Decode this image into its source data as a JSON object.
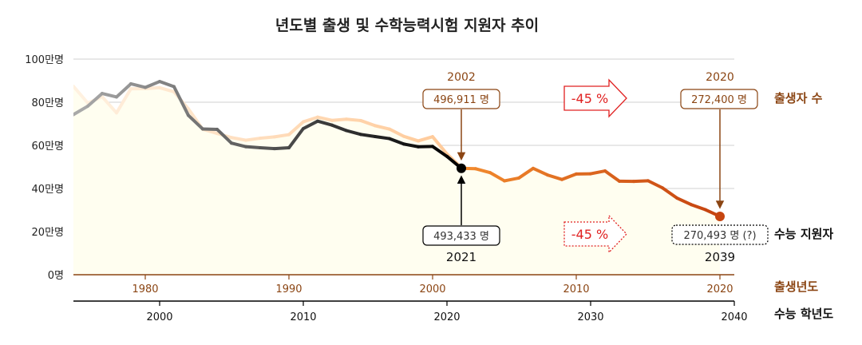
{
  "chart_data": {
    "type": "line",
    "title": "년도별 출생 및 수학능력시험 지원자 추이",
    "y_tick_labels": [
      "0명",
      "20만명",
      "40만명",
      "60만명",
      "80만명",
      "100만명"
    ],
    "ylim": [
      0,
      1000000
    ],
    "grid": true,
    "x_axis_birth": {
      "label": "출생년도",
      "ticks": [
        "1980",
        "1990",
        "2000",
        "2010",
        "2020"
      ],
      "range": [
        1975,
        2021
      ]
    },
    "x_axis_exam": {
      "label": "수능 학년도",
      "ticks": [
        "2000",
        "2010",
        "2020",
        "2030",
        "2040"
      ],
      "range": [
        1994,
        2040
      ]
    },
    "series": [
      {
        "name": "출생자 수",
        "axis": "birth",
        "x": [
          1975,
          1976,
          1977,
          1978,
          1979,
          1980,
          1981,
          1982,
          1983,
          1984,
          1985,
          1986,
          1987,
          1988,
          1989,
          1990,
          1991,
          1992,
          1993,
          1994,
          1995,
          1996,
          1997,
          1998,
          1999,
          2000,
          2001,
          2002,
          2003,
          2004,
          2005,
          2006,
          2007,
          2008,
          2009,
          2010,
          2011,
          2012,
          2013,
          2014,
          2015,
          2016,
          2017,
          2018,
          2019,
          2020
        ],
        "values": [
          874030,
          796331,
          825339,
          750728,
          862669,
          862835,
          867409,
          848312,
          769155,
          674793,
          655489,
          636019,
          623831,
          633092,
          639431,
          649738,
          709275,
          730678,
          715826,
          721185,
          715020,
          691226,
          675394,
          641594,
          620668,
          640089,
          559934,
          496911,
          495036,
          476958,
          438707,
          451759,
          496822,
          465892,
          444849,
          470171,
          471265,
          484550,
          436455,
          435435,
          438420,
          406243,
          357771,
          326822,
          302676,
          272400
        ]
      },
      {
        "name": "수능 지원자",
        "axis": "exam",
        "x": [
          1994,
          1995,
          1996,
          1997,
          1998,
          1999,
          2000,
          2001,
          2002,
          2003,
          2004,
          2005,
          2006,
          2007,
          2008,
          2009,
          2010,
          2011,
          2012,
          2013,
          2014,
          2015,
          2016,
          2017,
          2018,
          2019,
          2020,
          2021
        ],
        "values": [
          742668,
          781749,
          840661,
          824374,
          885321,
          868643,
          896122,
          872297,
          739129,
          675922,
          674154,
          610257,
          593806,
          588899,
          584934,
          588839,
          677834,
          712227,
          693631,
          668527,
          650747,
          640621,
          631187,
          605987,
          593527,
          594924,
          548734,
          493433
        ]
      },
      {
        "name": "수능 지원자 (예상)",
        "axis": "exam",
        "x": [
          2021,
          2022,
          2023,
          2024,
          2025,
          2026,
          2027,
          2028,
          2029,
          2030,
          2031,
          2032,
          2033,
          2034,
          2035,
          2036,
          2037,
          2038,
          2039
        ],
        "values": [
          493433,
          491530,
          473510,
          435370,
          448380,
          493270,
          462560,
          441860,
          467180,
          468250,
          481280,
          433810,
          432700,
          435620,
          402830,
          355940,
          325170,
          301230,
          270493
        ]
      }
    ],
    "annotations": {
      "birth_2002": {
        "year": "2002",
        "value": "496,911 명"
      },
      "birth_2020": {
        "year": "2020",
        "value": "272,400 명"
      },
      "exam_2021": {
        "year": "2021",
        "value": "493,433 명"
      },
      "exam_2039": {
        "year": "2039",
        "value": "270,493 명 (?)"
      },
      "drop_birth": "-45 %",
      "drop_exam": "-45 %"
    },
    "series_labels": {
      "births": "출생자 수",
      "applicants": "수능 지원자"
    },
    "colors": {
      "births_fill": "#fffef0",
      "births_dark": "#8b4513",
      "births_light": "#ffc998",
      "projection_start": "#f28a2e",
      "projection_end": "#c64510",
      "applicants_light": "#a9a9a9",
      "applicants_dark": "#000000",
      "red": "#e02020",
      "grid": "#d0d0d0"
    }
  }
}
